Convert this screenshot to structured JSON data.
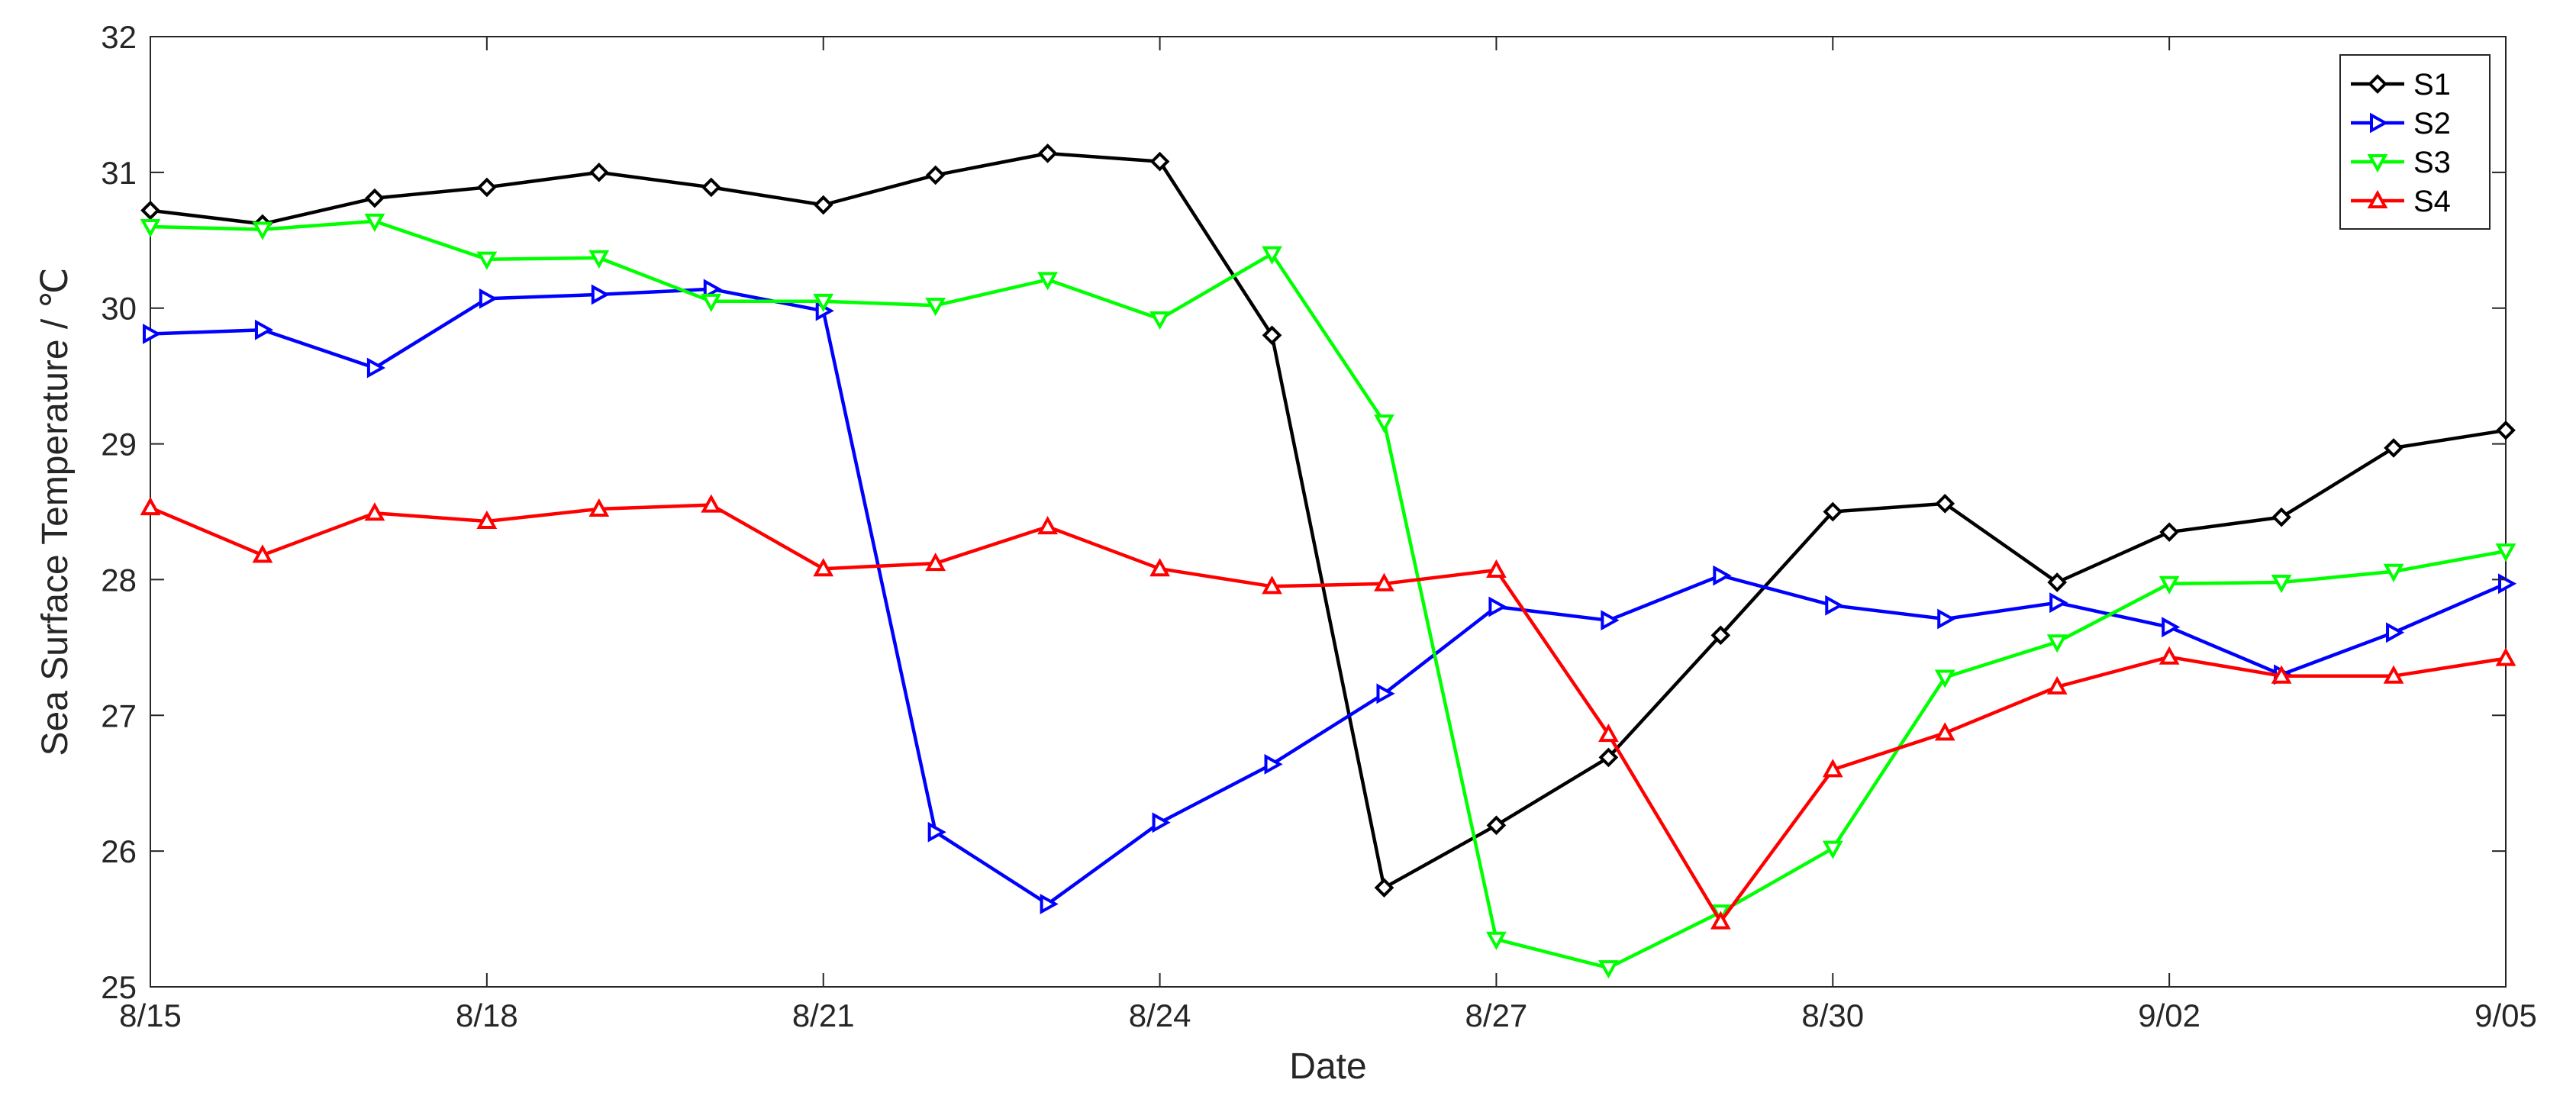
{
  "chart_data": {
    "type": "line",
    "xlabel": "Date",
    "ylabel": "Sea Surface Temperature / ℃",
    "ylim": [
      25,
      32
    ],
    "x_tick_labels": [
      "8/15",
      "8/18",
      "8/21",
      "8/24",
      "8/27",
      "8/30",
      "9/02",
      "9/05"
    ],
    "y_tick_labels": [
      "25",
      "26",
      "27",
      "28",
      "29",
      "30",
      "31",
      "32"
    ],
    "categories": [
      "8/15",
      "8/16",
      "8/17",
      "8/18",
      "8/19",
      "8/20",
      "8/21",
      "8/22",
      "8/23",
      "8/24",
      "8/25",
      "8/26",
      "8/27",
      "8/28",
      "8/29",
      "8/30",
      "8/31",
      "9/01",
      "9/02",
      "9/03",
      "9/04",
      "9/05"
    ],
    "grid": false,
    "legend_position": "top-right",
    "series": [
      {
        "name": "S1",
        "color": "#000000",
        "marker": "diamond",
        "values": [
          30.72,
          30.62,
          30.81,
          30.89,
          31.0,
          30.89,
          30.76,
          30.98,
          31.14,
          31.08,
          29.8,
          25.73,
          26.19,
          26.69,
          27.59,
          28.5,
          28.56,
          27.98,
          28.35,
          28.46,
          28.97,
          29.1
        ]
      },
      {
        "name": "S2",
        "color": "#0000FF",
        "marker": "triangle-right",
        "values": [
          29.81,
          29.84,
          29.56,
          30.07,
          30.1,
          30.14,
          29.98,
          26.14,
          25.61,
          26.21,
          26.64,
          27.16,
          27.8,
          27.7,
          28.03,
          27.81,
          27.71,
          27.83,
          27.65,
          27.3,
          27.61,
          27.97
        ]
      },
      {
        "name": "S3",
        "color": "#00FF00",
        "marker": "triangle-down",
        "values": [
          30.6,
          30.58,
          30.64,
          30.36,
          30.37,
          30.05,
          30.05,
          30.02,
          30.21,
          29.92,
          30.4,
          29.16,
          25.35,
          25.14,
          25.55,
          26.02,
          27.28,
          27.54,
          27.97,
          27.98,
          28.06,
          28.21
        ]
      },
      {
        "name": "S4",
        "color": "#FF0000",
        "marker": "triangle-up",
        "values": [
          28.53,
          28.18,
          28.49,
          28.43,
          28.52,
          28.55,
          28.08,
          28.12,
          28.39,
          28.08,
          27.95,
          27.97,
          28.07,
          26.86,
          25.48,
          26.6,
          26.87,
          27.21,
          27.43,
          27.29,
          27.29,
          27.42
        ]
      }
    ]
  }
}
